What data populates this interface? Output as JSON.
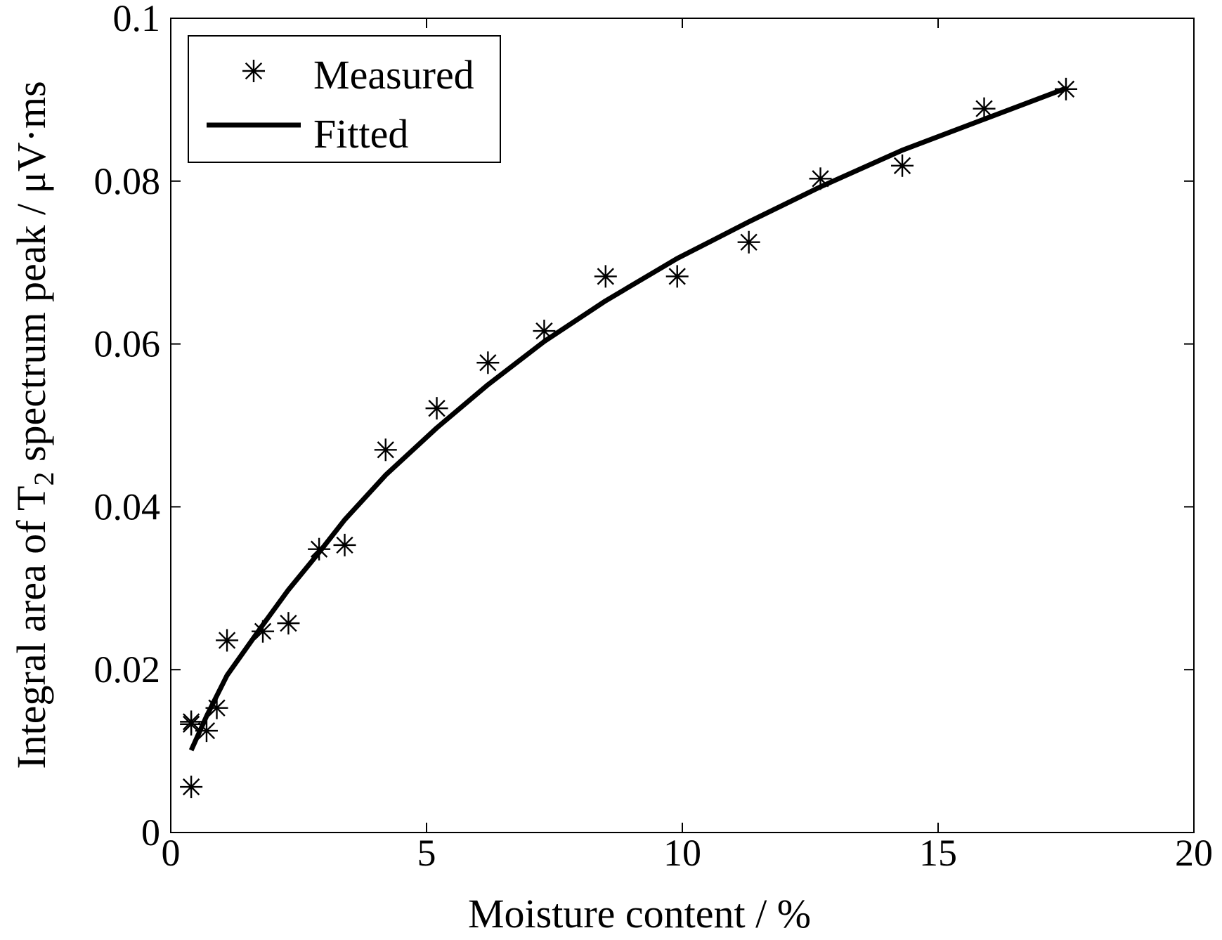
{
  "chart_data": {
    "type": "scatter",
    "title": "",
    "xlabel": "Moisture content / %",
    "ylabel": {
      "before": "Integral area of T",
      "sub": "2",
      "after": " spectrum peak / μV·ms"
    },
    "xlim": [
      0,
      20
    ],
    "ylim": [
      0,
      0.1
    ],
    "x_ticks": [
      {
        "value": 0,
        "label": "0"
      },
      {
        "value": 5,
        "label": "5"
      },
      {
        "value": 10,
        "label": "10"
      },
      {
        "value": 15,
        "label": "15"
      },
      {
        "value": 20,
        "label": "20"
      }
    ],
    "y_ticks": [
      {
        "value": 0,
        "label": "0"
      },
      {
        "value": 0.02,
        "label": "0.02"
      },
      {
        "value": 0.04,
        "label": "0.04"
      },
      {
        "value": 0.06,
        "label": "0.06"
      },
      {
        "value": 0.08,
        "label": "0.08"
      },
      {
        "value": 0.1,
        "label": "0.1"
      }
    ],
    "grid": false,
    "legend_position": "top-left",
    "series": [
      {
        "name": "Measured",
        "kind": "marker",
        "marker": "asterisk",
        "color": "#000000",
        "points": [
          [
            0.4,
            0.0136
          ],
          [
            0.4,
            0.0133
          ],
          [
            0.4,
            0.0056
          ],
          [
            0.7,
            0.0125
          ],
          [
            0.9,
            0.0153
          ],
          [
            1.1,
            0.0236
          ],
          [
            1.8,
            0.0247
          ],
          [
            2.3,
            0.0257
          ],
          [
            2.9,
            0.0348
          ],
          [
            3.4,
            0.0353
          ],
          [
            4.2,
            0.047
          ],
          [
            5.2,
            0.0521
          ],
          [
            6.2,
            0.0577
          ],
          [
            7.3,
            0.0616
          ],
          [
            8.5,
            0.0683
          ],
          [
            9.9,
            0.0683
          ],
          [
            11.3,
            0.0725
          ],
          [
            12.7,
            0.0803
          ],
          [
            14.3,
            0.0819
          ],
          [
            15.9,
            0.0889
          ],
          [
            17.5,
            0.0913
          ]
        ]
      },
      {
        "name": "Fitted",
        "kind": "line",
        "color": "#000000",
        "points": [
          [
            0.4,
            0.0101
          ],
          [
            0.7,
            0.0143
          ],
          [
            1.1,
            0.0193
          ],
          [
            1.8,
            0.0255
          ],
          [
            2.3,
            0.0298
          ],
          [
            2.9,
            0.0344
          ],
          [
            3.4,
            0.0384
          ],
          [
            4.2,
            0.0439
          ],
          [
            5.2,
            0.0497
          ],
          [
            6.2,
            0.055
          ],
          [
            7.3,
            0.0603
          ],
          [
            8.5,
            0.0653
          ],
          [
            9.9,
            0.0705
          ],
          [
            11.3,
            0.075
          ],
          [
            12.7,
            0.0793
          ],
          [
            14.3,
            0.0838
          ],
          [
            15.9,
            0.0876
          ],
          [
            17.5,
            0.0914
          ]
        ]
      }
    ]
  }
}
